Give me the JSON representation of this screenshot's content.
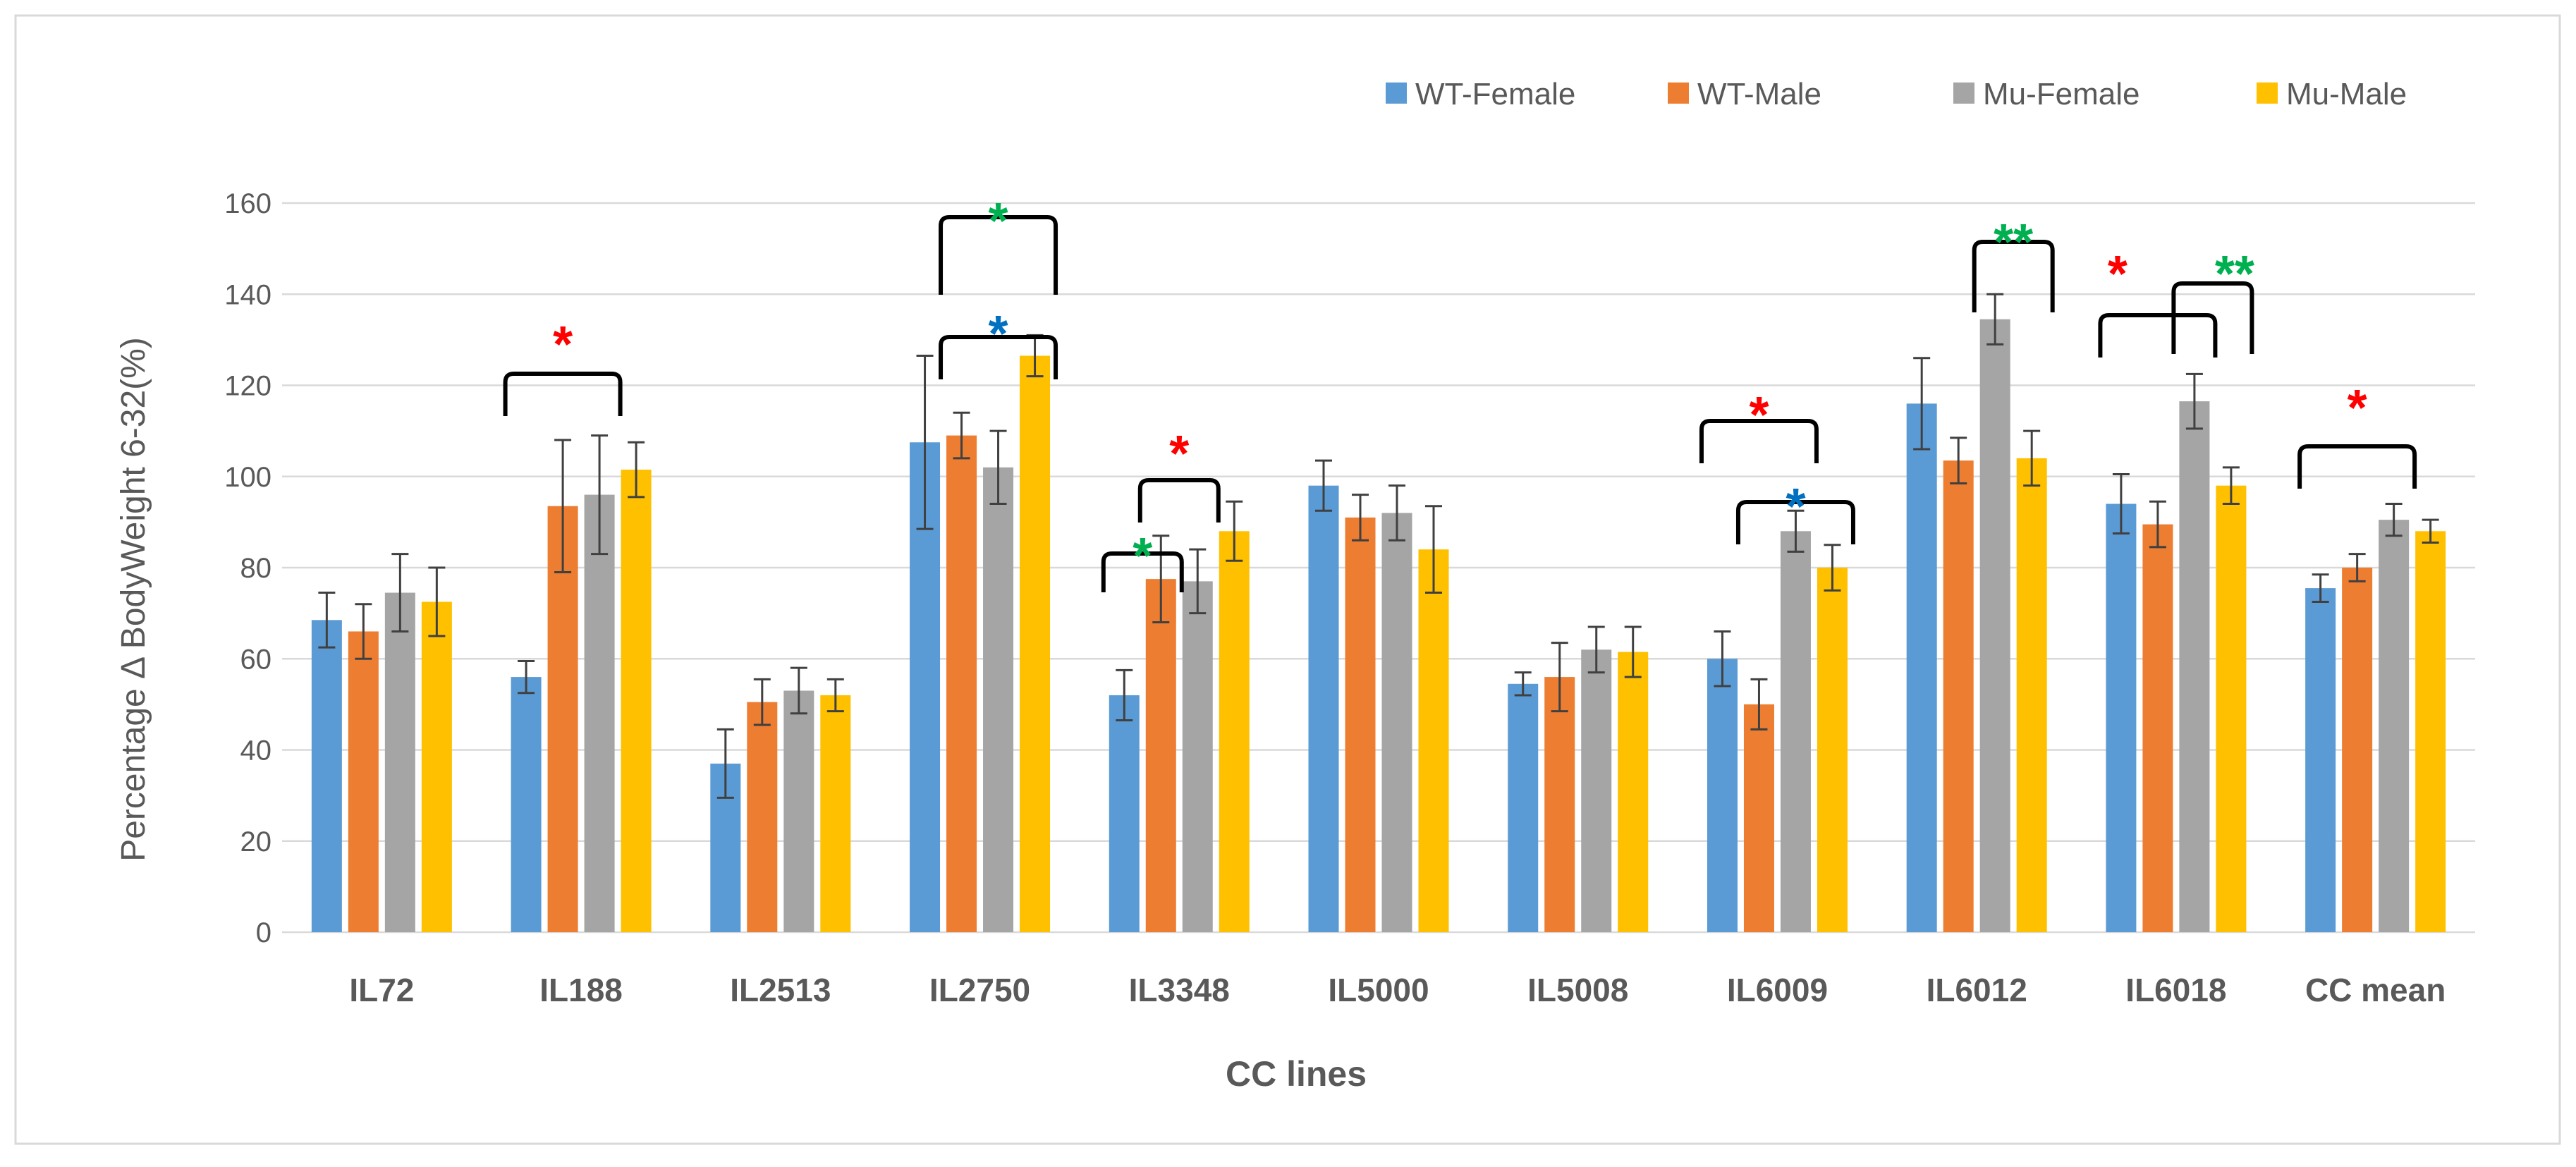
{
  "chart_data": {
    "type": "bar",
    "title": "",
    "xlabel": "CC lines",
    "ylabel": "Percentage Δ BodyWeight 6-32(%)",
    "ylim": [
      0,
      160
    ],
    "yticks": [
      0,
      20,
      40,
      60,
      80,
      100,
      120,
      140,
      160
    ],
    "grid": true,
    "legend_position": "top-right",
    "categories": [
      "IL72",
      "IL188",
      "IL2513",
      "IL2750",
      "IL3348",
      "IL5000",
      "IL5008",
      "IL6009",
      "IL6012",
      "IL6018",
      "CC mean"
    ],
    "series": [
      {
        "name": "WT-Female",
        "color": "#5b9bd5",
        "values": [
          68.5,
          56,
          37,
          107.5,
          52,
          98,
          54.5,
          60,
          116,
          94,
          75.5
        ],
        "errors": [
          6,
          3.5,
          7.5,
          19,
          5.5,
          5.5,
          2.5,
          6,
          10,
          6.5,
          3
        ]
      },
      {
        "name": "WT-Male",
        "color": "#ed7d31",
        "values": [
          66,
          93.5,
          50.5,
          109,
          77.5,
          91,
          56,
          50,
          103.5,
          89.5,
          80
        ],
        "errors": [
          6,
          14.5,
          5,
          5,
          9.5,
          5,
          7.5,
          5.5,
          5,
          5,
          3
        ]
      },
      {
        "name": "Mu-Female",
        "color": "#a5a5a5",
        "values": [
          74.5,
          96,
          53,
          102,
          77,
          92,
          62,
          88,
          134.5,
          116.5,
          90.5
        ],
        "errors": [
          8.5,
          13,
          5,
          8,
          7,
          6,
          5,
          4.5,
          5.5,
          6,
          3.5
        ]
      },
      {
        "name": "Mu-Male",
        "color": "#ffc000",
        "values": [
          72.5,
          101.5,
          52,
          126.5,
          88,
          84,
          61.5,
          80,
          104,
          98,
          88
        ],
        "errors": [
          7.5,
          6,
          3.5,
          4.5,
          6.5,
          9.5,
          5.5,
          5,
          6,
          4,
          2.5
        ]
      }
    ],
    "annotations": [
      {
        "text": "*",
        "color": "red",
        "category": "IL188",
        "from_series": 0,
        "to_series": 2
      },
      {
        "text": "*",
        "color": "green",
        "category": "IL2750",
        "from_series": 1,
        "to_series": 3
      },
      {
        "text": "*",
        "color": "blue",
        "category": "IL2750",
        "from_series": 1,
        "to_series": 3
      },
      {
        "text": "*",
        "color": "red",
        "category": "IL3348",
        "from_series": 1,
        "to_series": 2
      },
      {
        "text": "*",
        "color": "green",
        "category": "IL3348",
        "from_series": 0,
        "to_series": 1
      },
      {
        "text": "*",
        "color": "red",
        "category": "IL6009",
        "from_series": 0,
        "to_series": 2
      },
      {
        "text": "*",
        "color": "blue",
        "category": "IL6009",
        "from_series": 1,
        "to_series": 3
      },
      {
        "text": "**",
        "color": "green",
        "category": "IL6012",
        "from_series": 2,
        "to_series": 3
      },
      {
        "text": "*",
        "color": "red",
        "category": "IL6018",
        "from_series": 0,
        "to_series": 2
      },
      {
        "text": "**",
        "color": "green",
        "category": "IL6018",
        "from_series": 2,
        "to_series": 3
      },
      {
        "text": "*",
        "color": "red",
        "category": "CC mean",
        "from_series": 0,
        "to_series": 2
      }
    ]
  },
  "colors": {
    "red_star": "#ff0000",
    "green_star": "#00b050",
    "blue_star": "#0070c0",
    "bracket": "#000000",
    "gridline": "#d9d9d9",
    "axis_text": "#595959",
    "border": "#d9d9d9"
  }
}
